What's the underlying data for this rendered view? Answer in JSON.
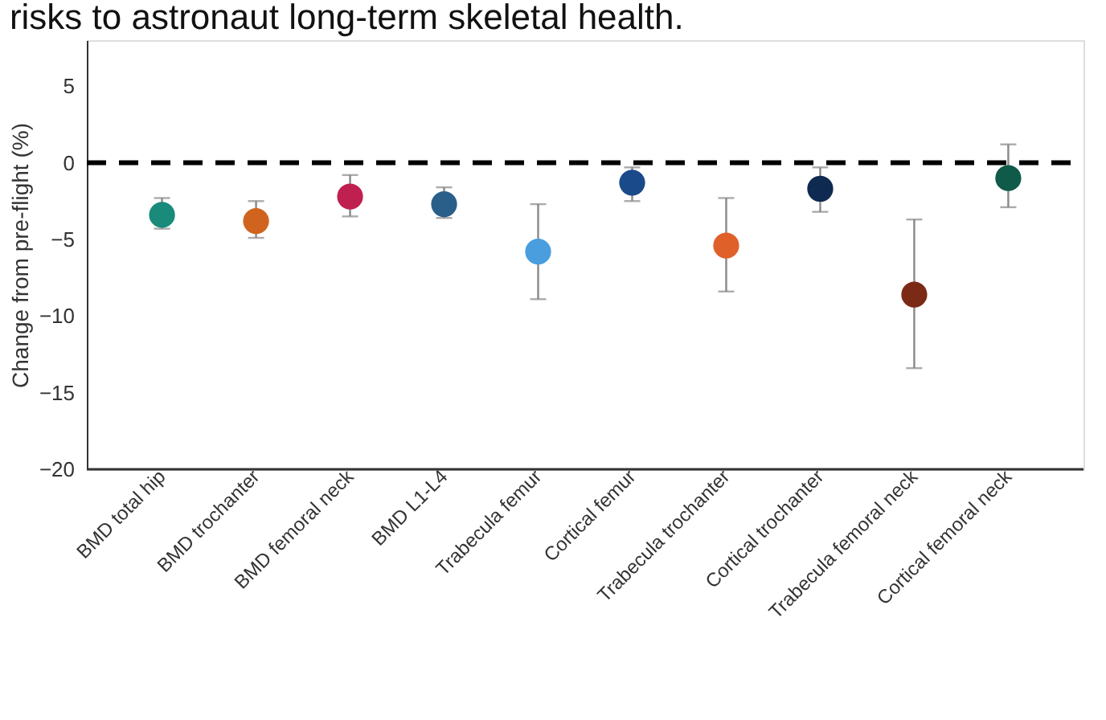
{
  "chart_data": {
    "type": "scatter",
    "title": "risks to astronaut long-term skeletal health.",
    "ylabel": "Change from pre-flight (%)",
    "categories": [
      "BMD total hip",
      "BMD trochanter",
      "BMD femoral neck",
      "BMD L1-L4",
      "Trabecula femur",
      "Cortical femur",
      "Trabecula trochanter",
      "Cortical trochanter",
      "Trabecula femoral neck",
      "Cortical femoral neck"
    ],
    "values": [
      -3.4,
      -3.8,
      -2.2,
      -2.7,
      -5.8,
      -1.3,
      -5.4,
      -1.7,
      -8.6,
      -1.0
    ],
    "errors": [
      [
        -4.3,
        -2.3
      ],
      [
        -4.9,
        -2.5
      ],
      [
        -3.5,
        -0.8
      ],
      [
        -3.6,
        -1.6
      ],
      [
        -8.9,
        -2.7
      ],
      [
        -2.5,
        -0.3
      ],
      [
        -8.4,
        -2.3
      ],
      [
        -3.2,
        -0.3
      ],
      [
        -13.4,
        -3.7
      ],
      [
        -2.9,
        1.2
      ]
    ],
    "colors": [
      "#1a8a7a",
      "#d0641e",
      "#c02050",
      "#2a5f8a",
      "#4a9ede",
      "#1a4a8a",
      "#e0602a",
      "#0f2a50",
      "#7a2a15",
      "#0f5a48"
    ],
    "ylim": [
      -20,
      8
    ],
    "yticks": [
      5,
      0,
      -5,
      -10,
      -15,
      -20
    ],
    "ref_lines": [
      {
        "axis": "y",
        "value": 0,
        "color": "#000000",
        "line_style": "dashed"
      }
    ],
    "marker": "circle",
    "grid": false
  }
}
